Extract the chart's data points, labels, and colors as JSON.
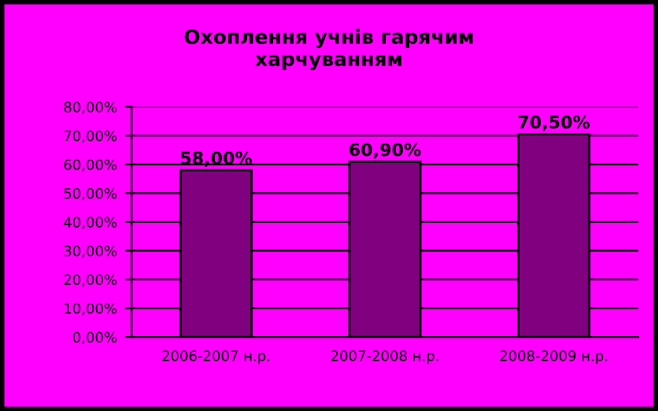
{
  "chart_data": {
    "type": "bar",
    "title": "Охоплення учнів гарячим\nхарчуванням",
    "categories": [
      "2006-2007 н.р.",
      "2007-2008 н.р.",
      "2008-2009 н.р."
    ],
    "series": [
      {
        "color": "#800080",
        "values": [
          58.0,
          60.9,
          70.5
        ],
        "value_labels": [
          "58,00%",
          "60,90%",
          "70,50%"
        ]
      }
    ],
    "ylim": [
      0,
      80
    ],
    "yticks": [
      {
        "value": 0,
        "label": "0,00%"
      },
      {
        "value": 10,
        "label": "10,00%"
      },
      {
        "value": 20,
        "label": "20,00%"
      },
      {
        "value": 30,
        "label": "30,00%"
      },
      {
        "value": 40,
        "label": "40,00%"
      },
      {
        "value": 50,
        "label": "50,00%"
      },
      {
        "value": 60,
        "label": "60,00%"
      },
      {
        "value": 70,
        "label": "70,00%"
      },
      {
        "value": 80,
        "label": "80,00%"
      }
    ],
    "grid": "y"
  }
}
